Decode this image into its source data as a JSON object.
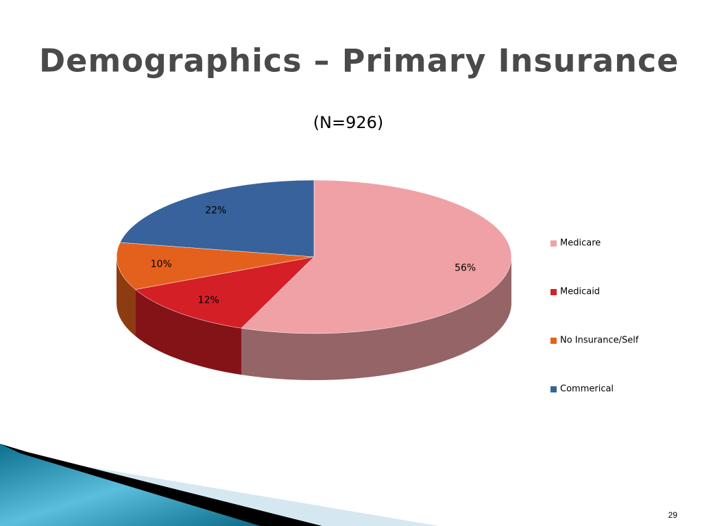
{
  "chart_data": {
    "type": "pie3d",
    "title": "Demographics – Primary Insurance",
    "subtitle": "(N=926)",
    "categories": [
      "Medicare",
      "Medicaid",
      "No Insurance/Self",
      "Commerical"
    ],
    "values": [
      56,
      12,
      10,
      22
    ],
    "value_labels": [
      "56%",
      "12%",
      "10%",
      "22%"
    ],
    "colors": [
      "#f0a1a6",
      "#d51f27",
      "#e4611d",
      "#37629c"
    ],
    "legend": "right"
  },
  "slide_number": "29"
}
